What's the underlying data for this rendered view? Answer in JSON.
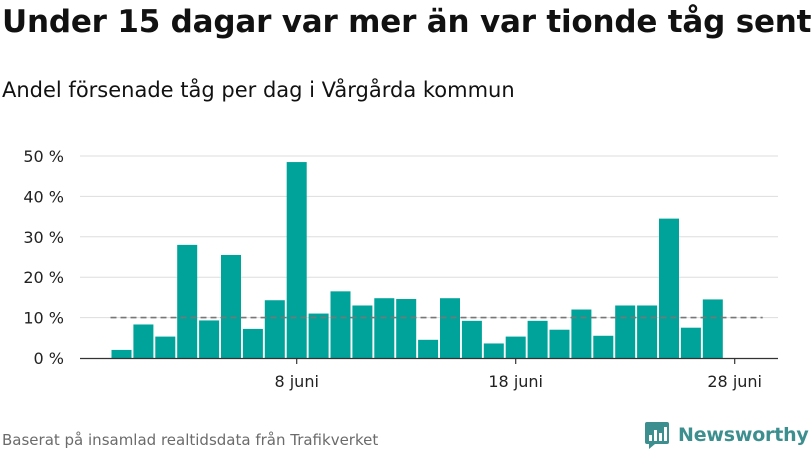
{
  "header": {
    "title": "Under 15 dagar var mer än var tionde tåg sent",
    "subtitle": "Andel försenade tåg per dag i Vårgårda kommun"
  },
  "footer": {
    "source": "Baserat på insamlad realtidsdata från Trafikverket",
    "brand": "Newsworthy"
  },
  "colors": {
    "bar": "#00a39a",
    "grid": "#dddddd",
    "axis": "#333333",
    "reference_line": "#777777",
    "brand": "#3d8f8f"
  },
  "chart_data": {
    "type": "bar",
    "x": [
      "2024-05-31",
      "2024-06-01",
      "2024-06-02",
      "2024-06-03",
      "2024-06-04",
      "2024-06-05",
      "2024-06-06",
      "2024-06-07",
      "2024-06-08",
      "2024-06-09",
      "2024-06-10",
      "2024-06-11",
      "2024-06-12",
      "2024-06-13",
      "2024-06-14",
      "2024-06-15",
      "2024-06-16",
      "2024-06-17",
      "2024-06-18",
      "2024-06-19",
      "2024-06-20",
      "2024-06-21",
      "2024-06-22",
      "2024-06-23",
      "2024-06-24",
      "2024-06-25",
      "2024-06-26",
      "2024-06-27",
      "2024-06-28"
    ],
    "values": [
      2,
      8.3,
      5.3,
      28,
      9.3,
      25.5,
      7.2,
      14.3,
      48.5,
      11,
      16.5,
      13,
      14.8,
      14.6,
      4.5,
      14.8,
      9.2,
      3.6,
      5.3,
      9.2,
      7,
      12,
      5.5,
      13,
      13,
      34.5,
      7.5,
      14.5,
      null
    ],
    "ylim": [
      0,
      50
    ],
    "yticks": [
      0,
      10,
      20,
      30,
      40,
      50
    ],
    "ytick_labels": [
      "0 %",
      "10 %",
      "20 %",
      "30 %",
      "40 %",
      "50 %"
    ],
    "xticks": [
      {
        "x": "2024-06-08",
        "label": "8 juni"
      },
      {
        "x": "2024-06-18",
        "label": "18 juni"
      },
      {
        "x": "2024-06-28",
        "label": "28 juni"
      }
    ],
    "reference_line": {
      "y": 10,
      "style": "dashed"
    },
    "grid": true,
    "legend": "none"
  }
}
